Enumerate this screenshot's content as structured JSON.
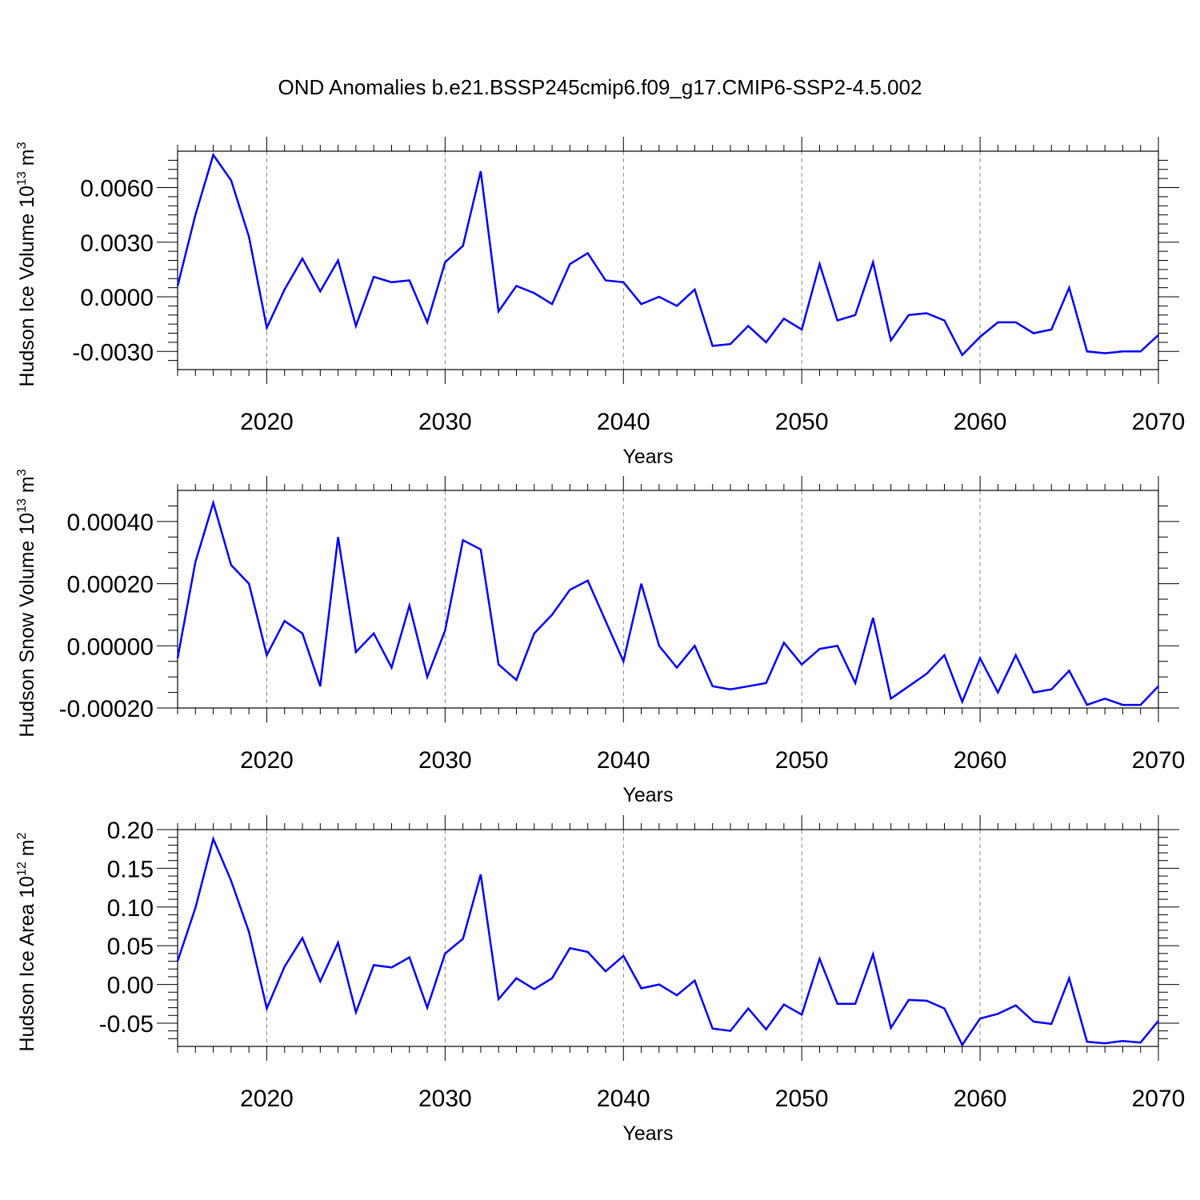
{
  "title": "OND Anomalies b.e21.BSSP245cmip6.f09_g17.CMIP6-SSP2-4.5.002",
  "colors": {
    "line": "#0000ff",
    "frame": "#000000",
    "grid": "#888888"
  },
  "chart_data": [
    {
      "type": "line",
      "ylabel": {
        "text": "Hudson Ice Volume 10",
        "sup": "13",
        "unit": " m",
        "unit_sup": "3"
      },
      "xlabel": "Years",
      "xlim": [
        2015,
        2070
      ],
      "ylim": [
        -0.004,
        0.008
      ],
      "yticks": [
        -0.003,
        0.0,
        0.003,
        0.006
      ],
      "ytick_labels": [
        "-0.0030",
        "0.0000",
        "0.0030",
        "0.0060"
      ],
      "yminor": [
        -0.0035,
        -0.0025,
        -0.002,
        -0.0015,
        -0.001,
        -0.0005,
        0.0005,
        0.001,
        0.0015,
        0.002,
        0.0025,
        0.0035,
        0.004,
        0.0045,
        0.005,
        0.0055,
        0.0065,
        0.007,
        0.0075
      ],
      "xticks": [
        2020,
        2030,
        2040,
        2050,
        2060,
        2070
      ],
      "xtick_labels": [
        "2020",
        "2030",
        "2040",
        "2050",
        "2060",
        "2070"
      ],
      "grid": "vertical dashed at major x ticks",
      "x": [
        2015,
        2016,
        2017,
        2018,
        2019,
        2020,
        2021,
        2022,
        2023,
        2024,
        2025,
        2026,
        2027,
        2028,
        2029,
        2030,
        2031,
        2032,
        2033,
        2034,
        2035,
        2036,
        2037,
        2038,
        2039,
        2040,
        2041,
        2042,
        2043,
        2044,
        2045,
        2046,
        2047,
        2048,
        2049,
        2050,
        2051,
        2052,
        2053,
        2054,
        2055,
        2056,
        2057,
        2058,
        2059,
        2060,
        2061,
        2062,
        2063,
        2064,
        2065,
        2066,
        2067,
        2068,
        2069,
        2070
      ],
      "values": [
        0.0006,
        0.0045,
        0.0078,
        0.0064,
        0.0033,
        -0.0017,
        0.0004,
        0.0021,
        0.0003,
        0.002,
        -0.0016,
        0.0011,
        0.0008,
        0.0009,
        -0.0014,
        0.0019,
        0.0028,
        0.0069,
        -0.0008,
        0.0006,
        0.0002,
        -0.0004,
        0.0018,
        0.0024,
        0.0009,
        0.0008,
        -0.0004,
        0.0,
        -0.0005,
        0.0004,
        -0.0027,
        -0.0026,
        -0.0016,
        -0.0025,
        -0.0012,
        -0.0018,
        0.0018,
        -0.0013,
        -0.001,
        0.0019,
        -0.0024,
        -0.001,
        -0.0009,
        -0.0013,
        -0.0032,
        -0.0022,
        -0.0014,
        -0.0014,
        -0.002,
        -0.0018,
        0.0005,
        -0.003,
        -0.0031,
        -0.003,
        -0.003,
        -0.0021
      ]
    },
    {
      "type": "line",
      "ylabel": {
        "text": "Hudson Snow Volume 10",
        "sup": "13",
        "unit": " m",
        "unit_sup": "3"
      },
      "xlabel": "Years",
      "xlim": [
        2015,
        2070
      ],
      "ylim": [
        -0.0002,
        0.0005
      ],
      "yticks": [
        -0.0002,
        0.0,
        0.0002,
        0.0004
      ],
      "ytick_labels": [
        "-0.00020",
        "0.00000",
        "0.00020",
        "0.00040"
      ],
      "yminor": [
        -0.00015,
        -0.0001,
        -5e-05,
        5e-05,
        0.0001,
        0.00015,
        0.00025,
        0.0003,
        0.00035,
        0.00045
      ],
      "xticks": [
        2020,
        2030,
        2040,
        2050,
        2060,
        2070
      ],
      "xtick_labels": [
        "2020",
        "2030",
        "2040",
        "2050",
        "2060",
        "2070"
      ],
      "grid": "vertical dashed at major x ticks",
      "x": [
        2015,
        2016,
        2017,
        2018,
        2019,
        2020,
        2021,
        2022,
        2023,
        2024,
        2025,
        2026,
        2027,
        2028,
        2029,
        2030,
        2031,
        2032,
        2033,
        2034,
        2035,
        2036,
        2037,
        2038,
        2039,
        2040,
        2041,
        2042,
        2043,
        2044,
        2045,
        2046,
        2047,
        2048,
        2049,
        2050,
        2051,
        2052,
        2053,
        2054,
        2055,
        2056,
        2057,
        2058,
        2059,
        2060,
        2061,
        2062,
        2063,
        2064,
        2065,
        2066,
        2067,
        2068,
        2069,
        2070
      ],
      "values": [
        -4e-05,
        0.00027,
        0.00046,
        0.00026,
        0.0002,
        -3e-05,
        8e-05,
        4e-05,
        -0.00013,
        0.00035,
        -2e-05,
        4e-05,
        -7e-05,
        0.00013,
        -0.0001,
        5e-05,
        0.00034,
        0.00031,
        -6e-05,
        -0.00011,
        4e-05,
        0.0001,
        0.00018,
        0.00021,
        8e-05,
        -5e-05,
        0.0002,
        0.0,
        -7e-05,
        0.0,
        -0.00013,
        -0.00014,
        -0.00013,
        -0.00012,
        1e-05,
        -6e-05,
        -1e-05,
        0.0,
        -0.00012,
        9e-05,
        -0.00017,
        -0.00013,
        -9e-05,
        -3e-05,
        -0.00018,
        -4e-05,
        -0.00015,
        -3e-05,
        -0.00015,
        -0.00014,
        -8e-05,
        -0.00019,
        -0.00017,
        -0.00019,
        -0.00019,
        -0.00013
      ]
    },
    {
      "type": "line",
      "ylabel": {
        "text": "Hudson Ice Area 10",
        "sup": "12",
        "unit": " m",
        "unit_sup": "2"
      },
      "xlabel": "Years",
      "xlim": [
        2015,
        2070
      ],
      "ylim": [
        -0.08,
        0.2
      ],
      "yticks": [
        -0.05,
        0.0,
        0.05,
        0.1,
        0.15,
        0.2
      ],
      "ytick_labels": [
        "-0.05",
        "0.00",
        "0.05",
        "0.10",
        "0.15",
        "0.20"
      ],
      "yminor": [
        -0.07,
        -0.06,
        -0.04,
        -0.03,
        -0.02,
        -0.01,
        0.01,
        0.02,
        0.03,
        0.04,
        0.06,
        0.07,
        0.08,
        0.09,
        0.11,
        0.12,
        0.13,
        0.14,
        0.16,
        0.17,
        0.18,
        0.19
      ],
      "xticks": [
        2020,
        2030,
        2040,
        2050,
        2060,
        2070
      ],
      "xtick_labels": [
        "2020",
        "2030",
        "2040",
        "2050",
        "2060",
        "2070"
      ],
      "grid": "vertical dashed at major x ticks",
      "x": [
        2015,
        2016,
        2017,
        2018,
        2019,
        2020,
        2021,
        2022,
        2023,
        2024,
        2025,
        2026,
        2027,
        2028,
        2029,
        2030,
        2031,
        2032,
        2033,
        2034,
        2035,
        2036,
        2037,
        2038,
        2039,
        2040,
        2041,
        2042,
        2043,
        2044,
        2045,
        2046,
        2047,
        2048,
        2049,
        2050,
        2051,
        2052,
        2053,
        2054,
        2055,
        2056,
        2057,
        2058,
        2059,
        2060,
        2061,
        2062,
        2063,
        2064,
        2065,
        2066,
        2067,
        2068,
        2069,
        2070
      ],
      "values": [
        0.03,
        0.099,
        0.188,
        0.134,
        0.068,
        -0.031,
        0.023,
        0.06,
        0.004,
        0.054,
        -0.036,
        0.025,
        0.022,
        0.035,
        -0.03,
        0.04,
        0.059,
        0.142,
        -0.019,
        0.008,
        -0.006,
        0.008,
        0.047,
        0.042,
        0.017,
        0.037,
        -0.005,
        0.0,
        -0.014,
        0.005,
        -0.057,
        -0.06,
        -0.031,
        -0.058,
        -0.026,
        -0.039,
        0.033,
        -0.025,
        -0.025,
        0.039,
        -0.056,
        -0.02,
        -0.021,
        -0.031,
        -0.078,
        -0.044,
        -0.038,
        -0.027,
        -0.048,
        -0.051,
        0.008,
        -0.074,
        -0.076,
        -0.073,
        -0.075,
        -0.047
      ]
    }
  ]
}
